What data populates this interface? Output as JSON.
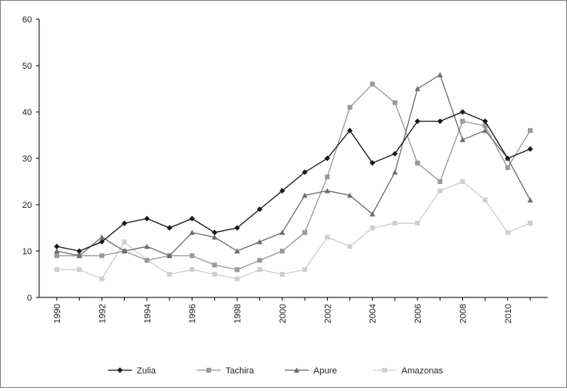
{
  "chart_data": {
    "type": "line",
    "title": "",
    "xlabel": "",
    "ylabel": "",
    "x": [
      1990,
      1991,
      1992,
      1993,
      1994,
      1995,
      1996,
      1997,
      1998,
      1999,
      2000,
      2001,
      2002,
      2003,
      2004,
      2005,
      2006,
      2007,
      2008,
      2009,
      2010,
      2011
    ],
    "x_tick_labels": [
      "1990",
      "1992",
      "1994",
      "1996",
      "1998",
      "2000",
      "2002",
      "2004",
      "2006",
      "2008",
      "2010"
    ],
    "y_tick_labels": [
      "0",
      "10",
      "20",
      "30",
      "40",
      "50",
      "60"
    ],
    "ylim": [
      0,
      60
    ],
    "xlim": [
      1990,
      2011
    ],
    "grid": false,
    "legend_position": "bottom",
    "series": [
      {
        "name": "Zulia",
        "color": "#1a1a1a",
        "marker": "diamond",
        "values": [
          11,
          10,
          12,
          16,
          17,
          15,
          17,
          14,
          15,
          19,
          23,
          27,
          30,
          36,
          29,
          31,
          38,
          38,
          40,
          38,
          30,
          32
        ]
      },
      {
        "name": "Tachira",
        "color": "#9a9a9a",
        "marker": "square",
        "values": [
          9,
          9,
          9,
          10,
          8,
          9,
          9,
          7,
          6,
          8,
          10,
          14,
          26,
          41,
          46,
          42,
          29,
          25,
          38,
          37,
          28,
          36
        ]
      },
      {
        "name": "Apure",
        "color": "#6e6e6e",
        "marker": "triangle",
        "values": [
          10,
          9,
          13,
          10,
          11,
          9,
          14,
          13,
          10,
          12,
          14,
          22,
          23,
          22,
          18,
          27,
          45,
          48,
          34,
          36,
          30,
          21
        ]
      },
      {
        "name": "Amazonas",
        "color": "#cfcfcf",
        "marker": "square",
        "values": [
          6,
          6,
          4,
          12,
          8,
          5,
          6,
          5,
          4,
          6,
          5,
          6,
          13,
          11,
          15,
          16,
          16,
          23,
          25,
          21,
          14,
          16
        ]
      }
    ]
  }
}
